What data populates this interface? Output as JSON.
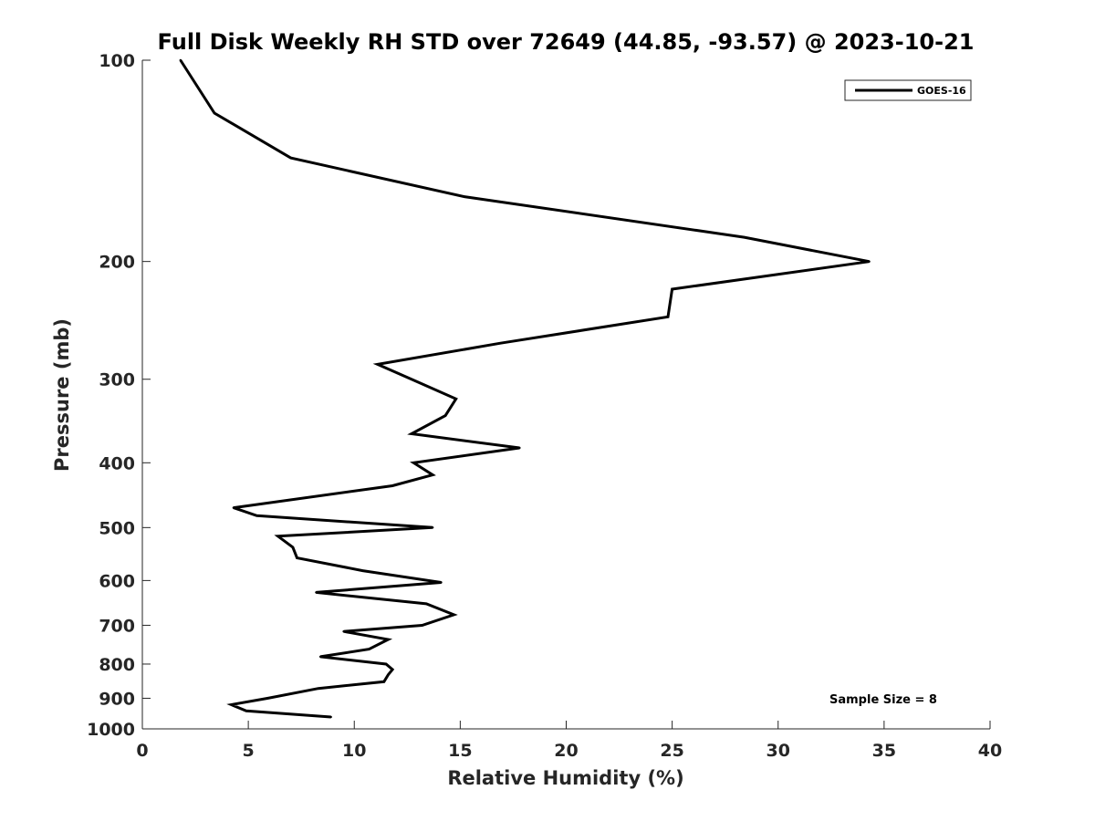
{
  "chart_data": {
    "type": "line",
    "title": "Full Disk Weekly RH STD over 72649 (44.85, -93.57) @ 2023-10-21",
    "xlabel": "Relative Humidity (%)",
    "ylabel": "Pressure (mb)",
    "xlim": [
      0,
      40
    ],
    "ylim": [
      100,
      1000
    ],
    "yscale": "log",
    "y_reversed": true,
    "xticks": [
      0,
      5,
      10,
      15,
      20,
      25,
      30,
      35,
      40
    ],
    "yticks": [
      100,
      200,
      300,
      400,
      500,
      600,
      700,
      800,
      900,
      1000
    ],
    "grid": false,
    "legend_position": "top-right",
    "annotation": "Sample Size = 8",
    "series": [
      {
        "name": "GOES-16",
        "color": "#000000",
        "x": [
          1.8,
          3.4,
          7.0,
          15.2,
          28.4,
          34.3,
          25.0,
          24.8,
          16.9,
          11.1,
          12.7,
          14.8,
          14.3,
          12.7,
          17.8,
          12.8,
          13.7,
          11.8,
          4.3,
          5.4,
          13.7,
          6.4,
          7.1,
          7.3,
          10.4,
          14.1,
          8.2,
          13.4,
          14.7,
          13.2,
          9.5,
          11.6,
          10.7,
          8.4,
          11.5,
          11.8,
          11.6,
          11.4,
          8.3,
          5.9,
          4.2,
          4.9,
          8.9
        ],
        "y": [
          100,
          120,
          140,
          160,
          184,
          200,
          220,
          242,
          265,
          285,
          300,
          321,
          340,
          362,
          380,
          400,
          417,
          433,
          467,
          480,
          500,
          515,
          535,
          555,
          580,
          604,
          625,
          650,
          675,
          700,
          715,
          735,
          760,
          780,
          800,
          815,
          830,
          850,
          870,
          900,
          920,
          940,
          960
        ]
      }
    ]
  }
}
